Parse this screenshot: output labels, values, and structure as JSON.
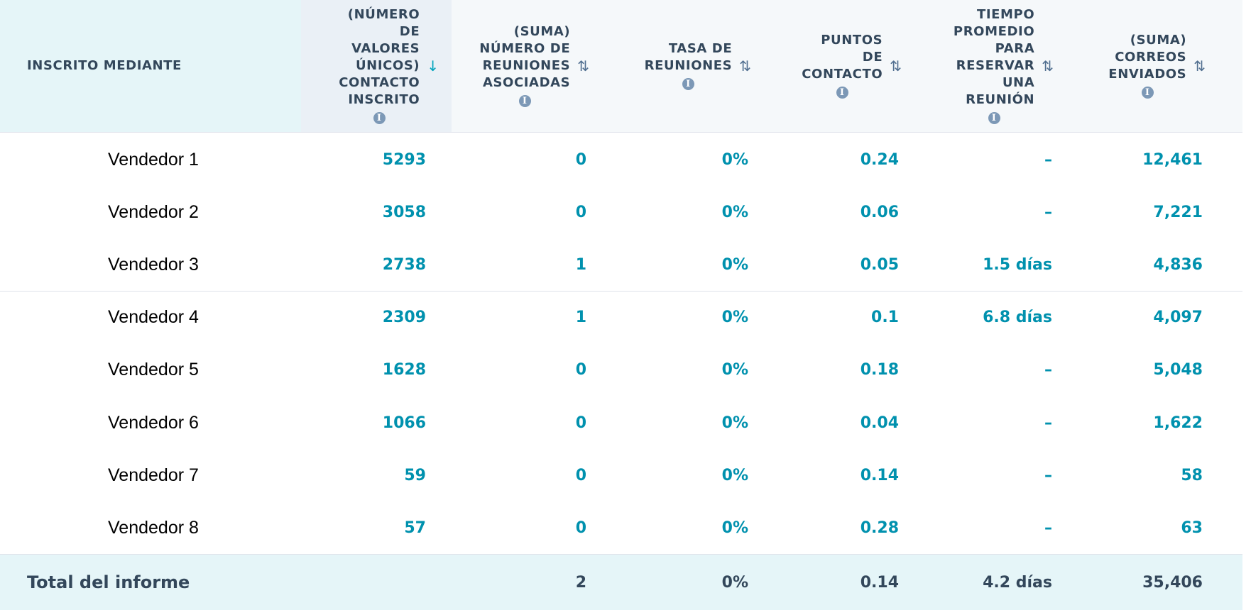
{
  "table": {
    "columns": [
      {
        "label_lines": [
          "Inscrito mediante"
        ]
      },
      {
        "label_lines": [
          "(Número",
          "de",
          "valores",
          "únicos)",
          "contacto",
          "inscrito"
        ],
        "info_icon": "info-icon",
        "sort": "descending"
      },
      {
        "label_lines": [
          "(Suma)",
          "número de",
          "reuniones",
          "asociadas"
        ],
        "info_icon": "info-icon",
        "sort": "none"
      },
      {
        "label_lines": [
          "Tasa de",
          "reuniones"
        ],
        "info_icon": "info-icon",
        "sort": "none"
      },
      {
        "label_lines": [
          "Puntos",
          "de",
          "contacto"
        ],
        "info_icon": "info-icon",
        "sort": "none"
      },
      {
        "label_lines": [
          "Tiempo",
          "promedio",
          "para",
          "reservar",
          "una",
          "reunión"
        ],
        "info_icon": "info-icon",
        "sort": "none"
      },
      {
        "label_lines": [
          "(Suma)",
          "correos",
          "enviados"
        ],
        "info_icon": "info-icon",
        "sort": "none"
      }
    ],
    "icons": {
      "info": "i",
      "sort_desc": "↓",
      "sort_both": "⇅"
    },
    "rows": [
      {
        "name": "Vendedor 1",
        "contacts": "5293",
        "meetings": "0",
        "rate": "0%",
        "touchpoints": "0.24",
        "time": "–",
        "emails": "12,461"
      },
      {
        "name": "Vendedor 2",
        "contacts": "3058",
        "meetings": "0",
        "rate": "0%",
        "touchpoints": "0.06",
        "time": "–",
        "emails": "7,221"
      },
      {
        "name": "Vendedor 3",
        "contacts": "2738",
        "meetings": "1",
        "rate": "0%",
        "touchpoints": "0.05",
        "time": "1.5 días",
        "emails": "4,836"
      },
      {
        "name": "Vendedor 4",
        "contacts": "2309",
        "meetings": "1",
        "rate": "0%",
        "touchpoints": "0.1",
        "time": "6.8 días",
        "emails": "4,097"
      },
      {
        "name": "Vendedor 5",
        "contacts": "1628",
        "meetings": "0",
        "rate": "0%",
        "touchpoints": "0.18",
        "time": "–",
        "emails": "5,048"
      },
      {
        "name": "Vendedor 6",
        "contacts": "1066",
        "meetings": "0",
        "rate": "0%",
        "touchpoints": "0.04",
        "time": "–",
        "emails": "1,622"
      },
      {
        "name": "Vendedor 7",
        "contacts": "59",
        "meetings": "0",
        "rate": "0%",
        "touchpoints": "0.14",
        "time": "–",
        "emails": "58"
      },
      {
        "name": "Vendedor 8",
        "contacts": "57",
        "meetings": "0",
        "rate": "0%",
        "touchpoints": "0.28",
        "time": "–",
        "emails": "63"
      }
    ],
    "total": {
      "label": "Total del informe",
      "meetings": "2",
      "rate": "0%",
      "touchpoints": "0.14",
      "time": "4.2 días",
      "emails": "35,406"
    },
    "colors": {
      "link_value": "#0091ae",
      "header_text": "#33475b",
      "header_bg": "#f5f8fa",
      "first_col_bg": "#e5f5f8",
      "sorted_col_bg": "#eaf0f6"
    }
  }
}
